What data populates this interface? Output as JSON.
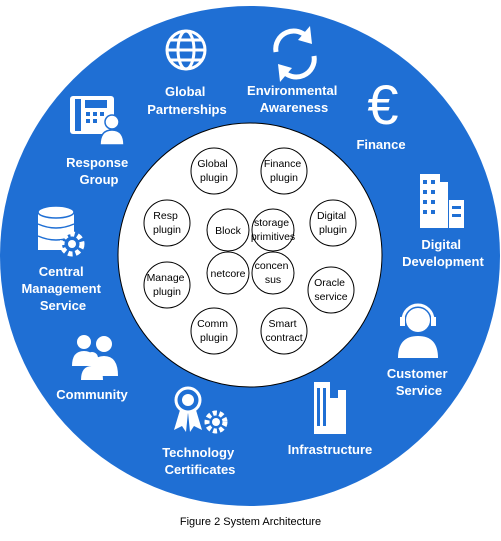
{
  "colors": {
    "ring": "#1f6fd4",
    "inner": "#ffffff",
    "icon": "#ffffff",
    "stroke": "#000000"
  },
  "segments": {
    "global_partnerships": {
      "label": [
        "Global",
        "Partnerships"
      ],
      "icon": "globe-icon"
    },
    "environmental_awareness": {
      "label": [
        "Environmental",
        "Awareness"
      ],
      "icon": "recycle-arrows-icon"
    },
    "finance": {
      "label": [
        "Finance"
      ],
      "icon": "euro-icon"
    },
    "digital_development": {
      "label": [
        "Digital",
        "Development"
      ],
      "icon": "buildings-icon"
    },
    "customer_service": {
      "label": [
        "Customer",
        "Service"
      ],
      "icon": "headset-agent-icon"
    },
    "infrastructure": {
      "label": [
        "Infrastructure"
      ],
      "icon": "skyscraper-icon"
    },
    "technology_certificates": {
      "label": [
        "Technology",
        "Certificates"
      ],
      "icon": "award-ribbon-gear-icon"
    },
    "community": {
      "label": [
        "Community"
      ],
      "icon": "people-group-icon"
    },
    "central_management_service": {
      "label": [
        "Central",
        "Management",
        "Service"
      ],
      "icon": "database-gear-icon"
    },
    "response_group": {
      "label": [
        "Response",
        "Group"
      ],
      "icon": "phone-people-icon"
    }
  },
  "plugins": {
    "global": [
      "Global",
      "plugin"
    ],
    "finance": [
      "Finance",
      "plugin"
    ],
    "resp": [
      "Resp",
      "plugin"
    ],
    "digital": [
      "Digital",
      "plugin"
    ],
    "manage": [
      "Manage",
      "plugin"
    ],
    "oracle": [
      "Oracle",
      "service"
    ],
    "comm": [
      "Comm",
      "plugin"
    ],
    "smart": [
      "Smart",
      "contract"
    ]
  },
  "core": {
    "block": [
      "Block"
    ],
    "storage": [
      "storage",
      "primitives"
    ],
    "netcore": [
      "netcore"
    ],
    "consensus": [
      "concen",
      "sus"
    ]
  },
  "caption": "Figure 2  System Architecture"
}
